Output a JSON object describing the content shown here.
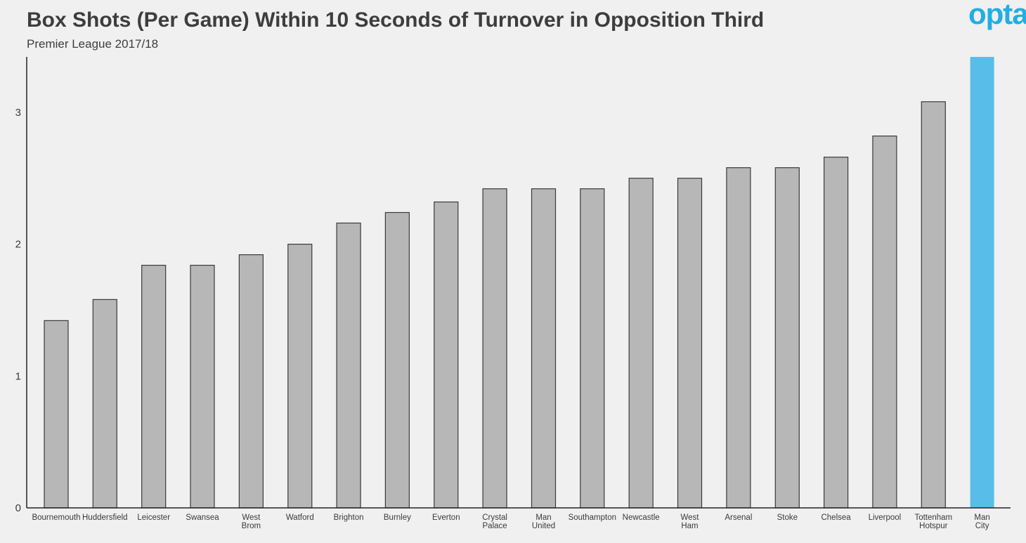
{
  "header": {
    "title": "Box Shots (Per Game) Within 10 Seconds of Turnover in Opposition Third",
    "subtitle": "Premier League 2017/18",
    "logo": "opta"
  },
  "colors": {
    "background": "#f0f0f0",
    "bar": "#b7b7b7",
    "bar_stroke": "#3a3a3a",
    "highlight": "#58bde9",
    "axis": "#222222",
    "logo": "#22aee4"
  },
  "chart_data": {
    "type": "bar",
    "title": "Box Shots (Per Game) Within 10 Seconds of Turnover in Opposition Third",
    "subtitle": "Premier League 2017/18",
    "xlabel": "",
    "ylabel": "",
    "ylim": [
      0,
      3.42
    ],
    "yticks": [
      0,
      1,
      2,
      3
    ],
    "grid": false,
    "categories": [
      "Bournemouth",
      "Huddersfield",
      "Leicester",
      "Swansea",
      "West Brom",
      "Watford",
      "Brighton",
      "Burnley",
      "Everton",
      "Crystal Palace",
      "Man United",
      "Southampton",
      "Newcastle",
      "West Ham",
      "Arsenal",
      "Stoke",
      "Chelsea",
      "Liverpool",
      "Tottenham Hotspur",
      "Man City"
    ],
    "category_label_lines": [
      [
        "Bournemouth"
      ],
      [
        "Huddersfield"
      ],
      [
        "Leicester"
      ],
      [
        "Swansea"
      ],
      [
        "West",
        "Brom"
      ],
      [
        "Watford"
      ],
      [
        "Brighton"
      ],
      [
        "Burnley"
      ],
      [
        "Everton"
      ],
      [
        "Crystal",
        "Palace"
      ],
      [
        "Man",
        "United"
      ],
      [
        "Southampton"
      ],
      [
        "Newcastle"
      ],
      [
        "West",
        "Ham"
      ],
      [
        "Arsenal"
      ],
      [
        "Stoke"
      ],
      [
        "Chelsea"
      ],
      [
        "Liverpool"
      ],
      [
        "Tottenham",
        "Hotspur"
      ],
      [
        "Man",
        "City"
      ]
    ],
    "values": [
      1.42,
      1.58,
      1.84,
      1.84,
      1.92,
      2.0,
      2.16,
      2.24,
      2.32,
      2.42,
      2.42,
      2.42,
      2.5,
      2.5,
      2.58,
      2.58,
      2.66,
      2.82,
      3.08,
      3.42
    ],
    "highlight_index": 19
  }
}
